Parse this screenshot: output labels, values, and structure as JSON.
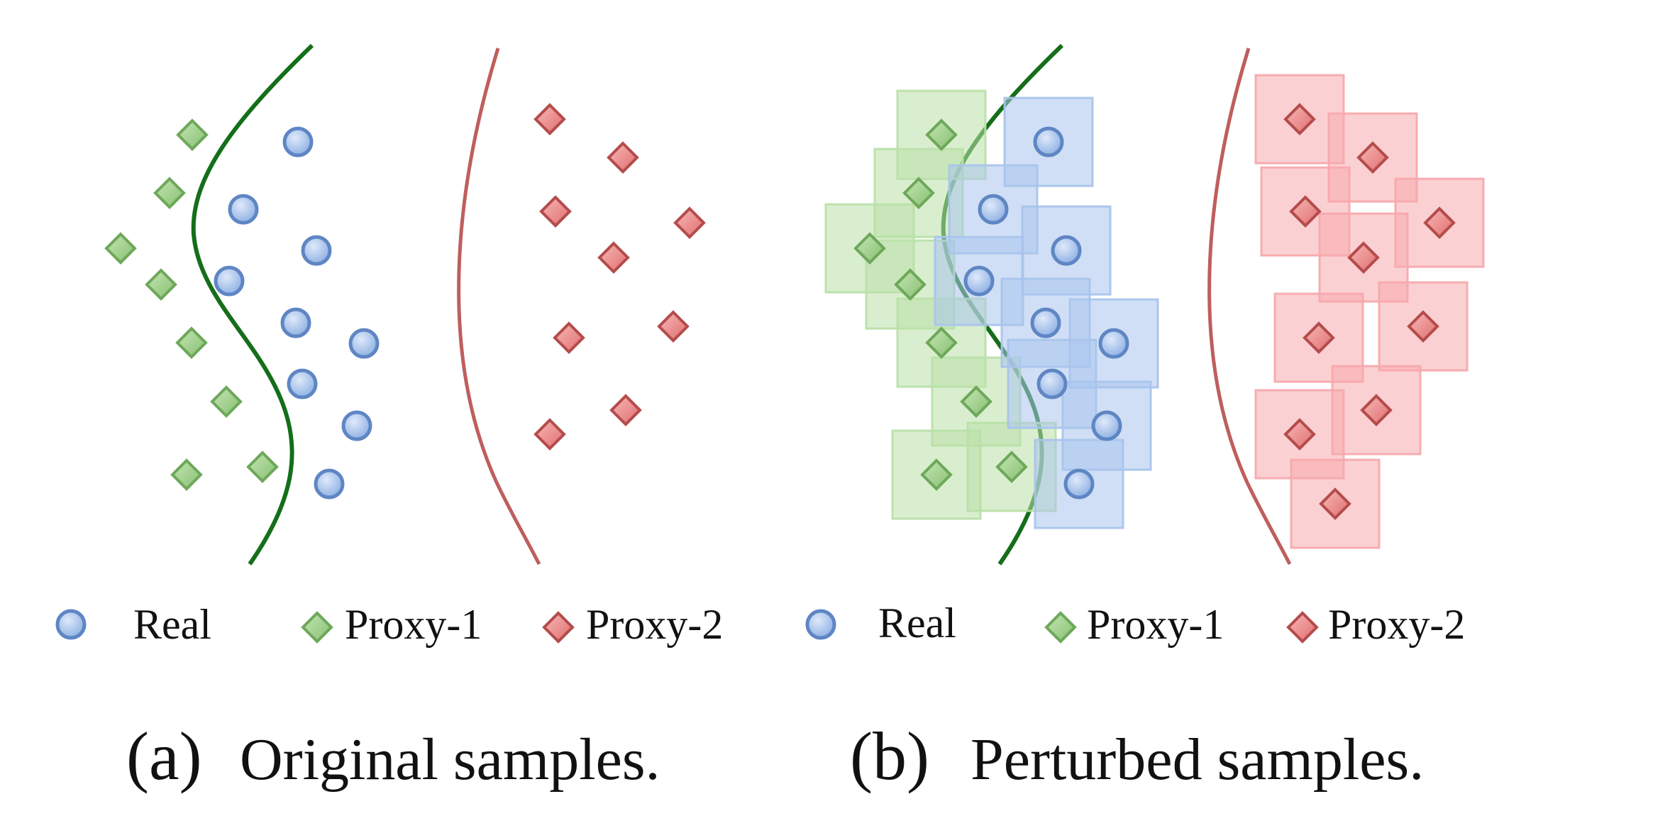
{
  "panels": [
    {
      "id": "a",
      "caption_letter": "(a)",
      "caption_text": "Original samples.",
      "perturbed": false,
      "legend": [
        "Real",
        "Proxy-1",
        "Proxy-2"
      ]
    },
    {
      "id": "b",
      "caption_letter": "(b)",
      "caption_text": "Perturbed samples.",
      "perturbed": true,
      "legend": [
        "Real",
        "Proxy-1",
        "Proxy-2"
      ]
    }
  ],
  "legend": {
    "real": "Real",
    "proxy1": "Proxy-1",
    "proxy2": "Proxy-2"
  },
  "colors": {
    "real_fill": "#9ab8e6",
    "real_stroke": "#5f86c4",
    "proxy1_fill": "#9fd08a",
    "proxy1_stroke": "#6ea85a",
    "proxy2_fill": "#ef8e8e",
    "proxy2_stroke": "#b44c4c",
    "boundary_green": "#146e1a",
    "boundary_red": "#bf5e5e",
    "box_real": "#a9c4ec",
    "box_proxy1": "#b9e0a8",
    "box_proxy2": "#f7a9ad"
  }
}
